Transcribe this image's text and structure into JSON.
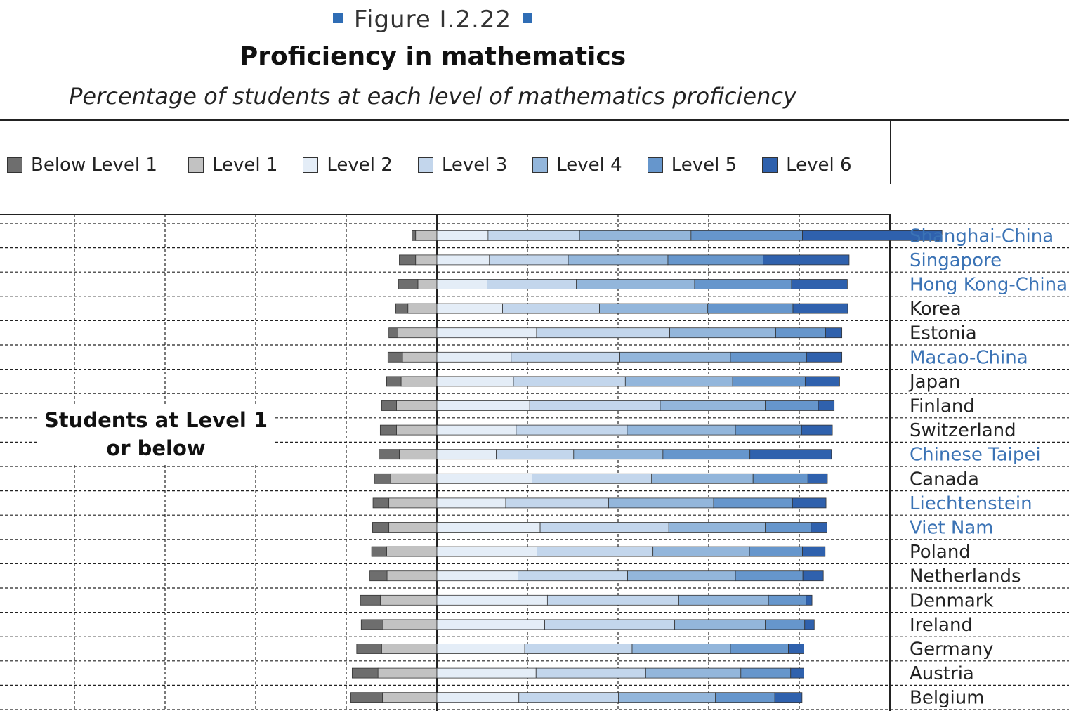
{
  "figure_label": "Figure I.2.22",
  "colors": {
    "below_level_1": "#6e6e6e",
    "level_1": "#c2c2c2",
    "level_2": "#e4edf7",
    "level_3": "#c3d6ec",
    "level_4": "#93b6db",
    "level_5": "#6696cc",
    "level_6": "#2f61ad",
    "partner_label": "#3b73b5",
    "oecd_label": "#222222"
  },
  "chart_data": {
    "type": "bar",
    "orientation": "horizontal-stacked-diverging",
    "title": "Proficiency in mathematics",
    "subtitle": "Percentage of students at each level of mathematics proficiency",
    "legend": [
      "Below Level 1",
      "Level 1",
      "Level 2",
      "Level 3",
      "Level 4",
      "Level 5",
      "Level 6"
    ],
    "legend_placement": "top",
    "annotation": [
      "Students at Level 1",
      "or below"
    ],
    "xlim": [
      -100,
      50
    ],
    "grid": true,
    "categories": [
      "Shanghai-China",
      "Singapore",
      "Hong Kong-China",
      "Korea",
      "Estonia",
      "Macao-China",
      "Japan",
      "Finland",
      "Switzerland",
      "Chinese Taipei",
      "Canada",
      "Liechtenstein",
      "Viet Nam",
      "Poland",
      "Netherlands",
      "Denmark",
      "Ireland",
      "Germany",
      "Austria",
      "Belgium"
    ],
    "partner": [
      true,
      true,
      true,
      false,
      false,
      true,
      false,
      false,
      false,
      true,
      false,
      true,
      true,
      false,
      false,
      false,
      false,
      false,
      false,
      false
    ],
    "series": [
      {
        "name": "Below Level 1",
        "values": [
          0.8,
          3.6,
          4.3,
          2.7,
          2.0,
          3.2,
          3.2,
          3.3,
          3.6,
          4.5,
          3.6,
          3.5,
          3.6,
          3.3,
          3.8,
          4.4,
          4.8,
          5.5,
          5.7,
          7.0
        ]
      },
      {
        "name": "Level 1",
        "values": [
          4.7,
          4.7,
          4.2,
          6.4,
          8.6,
          7.6,
          7.9,
          8.9,
          8.9,
          8.3,
          10.2,
          10.6,
          10.6,
          11.1,
          11.0,
          12.5,
          11.9,
          12.2,
          13.0,
          12.0
        ]
      },
      {
        "name": "Level 2",
        "values": [
          11.3,
          11.6,
          11.1,
          14.5,
          22.0,
          16.4,
          16.9,
          20.5,
          17.5,
          13.1,
          21.0,
          15.2,
          22.8,
          22.1,
          17.9,
          24.4,
          23.8,
          19.4,
          21.9,
          18.1
        ]
      },
      {
        "name": "Level 3",
        "values": [
          20.2,
          17.4,
          19.7,
          21.4,
          29.4,
          24.0,
          24.7,
          28.8,
          24.5,
          17.1,
          26.4,
          22.7,
          28.4,
          25.6,
          24.2,
          29.0,
          28.7,
          23.7,
          24.2,
          22.0
        ]
      },
      {
        "name": "Level 4",
        "values": [
          24.6,
          22.0,
          26.1,
          23.9,
          23.4,
          24.4,
          23.7,
          23.2,
          23.9,
          19.7,
          22.4,
          23.2,
          21.3,
          21.3,
          23.8,
          19.8,
          20.0,
          21.7,
          21.0,
          21.4
        ]
      },
      {
        "name": "Level 5",
        "values": [
          24.6,
          21.0,
          21.4,
          18.8,
          11.0,
          16.8,
          16.0,
          11.7,
          14.6,
          19.2,
          12.1,
          17.4,
          10.1,
          11.7,
          14.9,
          8.3,
          8.7,
          12.8,
          11.0,
          13.1
        ]
      },
      {
        "name": "Level 6",
        "values": [
          30.8,
          19.0,
          12.3,
          12.1,
          3.6,
          7.8,
          7.6,
          3.5,
          6.8,
          18.0,
          4.3,
          7.4,
          3.5,
          5.0,
          4.5,
          1.3,
          2.1,
          3.4,
          2.9,
          6.0
        ]
      }
    ]
  }
}
